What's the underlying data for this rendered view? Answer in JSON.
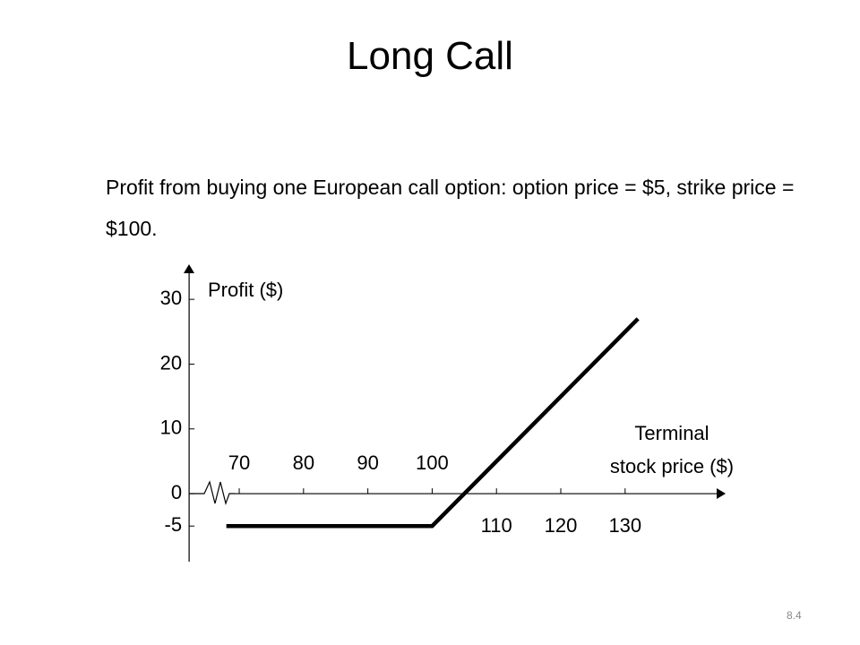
{
  "chart_data": {
    "type": "line",
    "title": "Long Call",
    "subtitle": "Profit from buying one European call option: option price = $5, strike price = $100.",
    "y_label": "Profit ($)",
    "x_label": [
      "Terminal",
      "stock price ($)"
    ],
    "page_number": "8.4",
    "x": [
      68,
      100,
      132
    ],
    "series": [
      {
        "color": "#000000",
        "values": [
          -5,
          -5,
          27
        ]
      }
    ],
    "xlim": [
      62,
      145
    ],
    "ylim": [
      -10.5,
      35
    ],
    "xticks": [
      70,
      80,
      90,
      100,
      110,
      120,
      130
    ],
    "yticks": [
      -5,
      0,
      10,
      20,
      30
    ],
    "grid": false
  }
}
